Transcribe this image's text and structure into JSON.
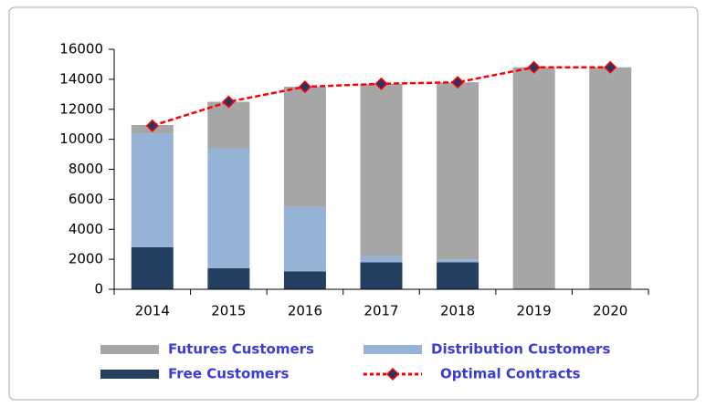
{
  "chart_data": {
    "type": "bar",
    "stacked": true,
    "categories": [
      "2014",
      "2015",
      "2016",
      "2017",
      "2018",
      "2019",
      "2020"
    ],
    "series": [
      {
        "name": "Free Customers",
        "color": "#243f60",
        "values": [
          2800,
          1400,
          1200,
          1800,
          1800,
          0,
          0
        ]
      },
      {
        "name": "Distribution Customers",
        "color": "#95b3d7",
        "values": [
          7600,
          8000,
          4300,
          400,
          200,
          0,
          0
        ]
      },
      {
        "name": "Futures Customers",
        "color": "#a6a6a6",
        "values": [
          550,
          3100,
          8000,
          11500,
          11800,
          14800,
          14800
        ]
      },
      {
        "name": "Optimal Contracts",
        "type": "line",
        "color": "#ff0000",
        "values": [
          10900,
          12500,
          13500,
          13700,
          13800,
          14800,
          14800
        ]
      }
    ],
    "ylim": [
      0,
      16000
    ],
    "yticks": [
      0,
      2000,
      4000,
      6000,
      8000,
      10000,
      12000,
      14000,
      16000
    ],
    "grid": false
  }
}
